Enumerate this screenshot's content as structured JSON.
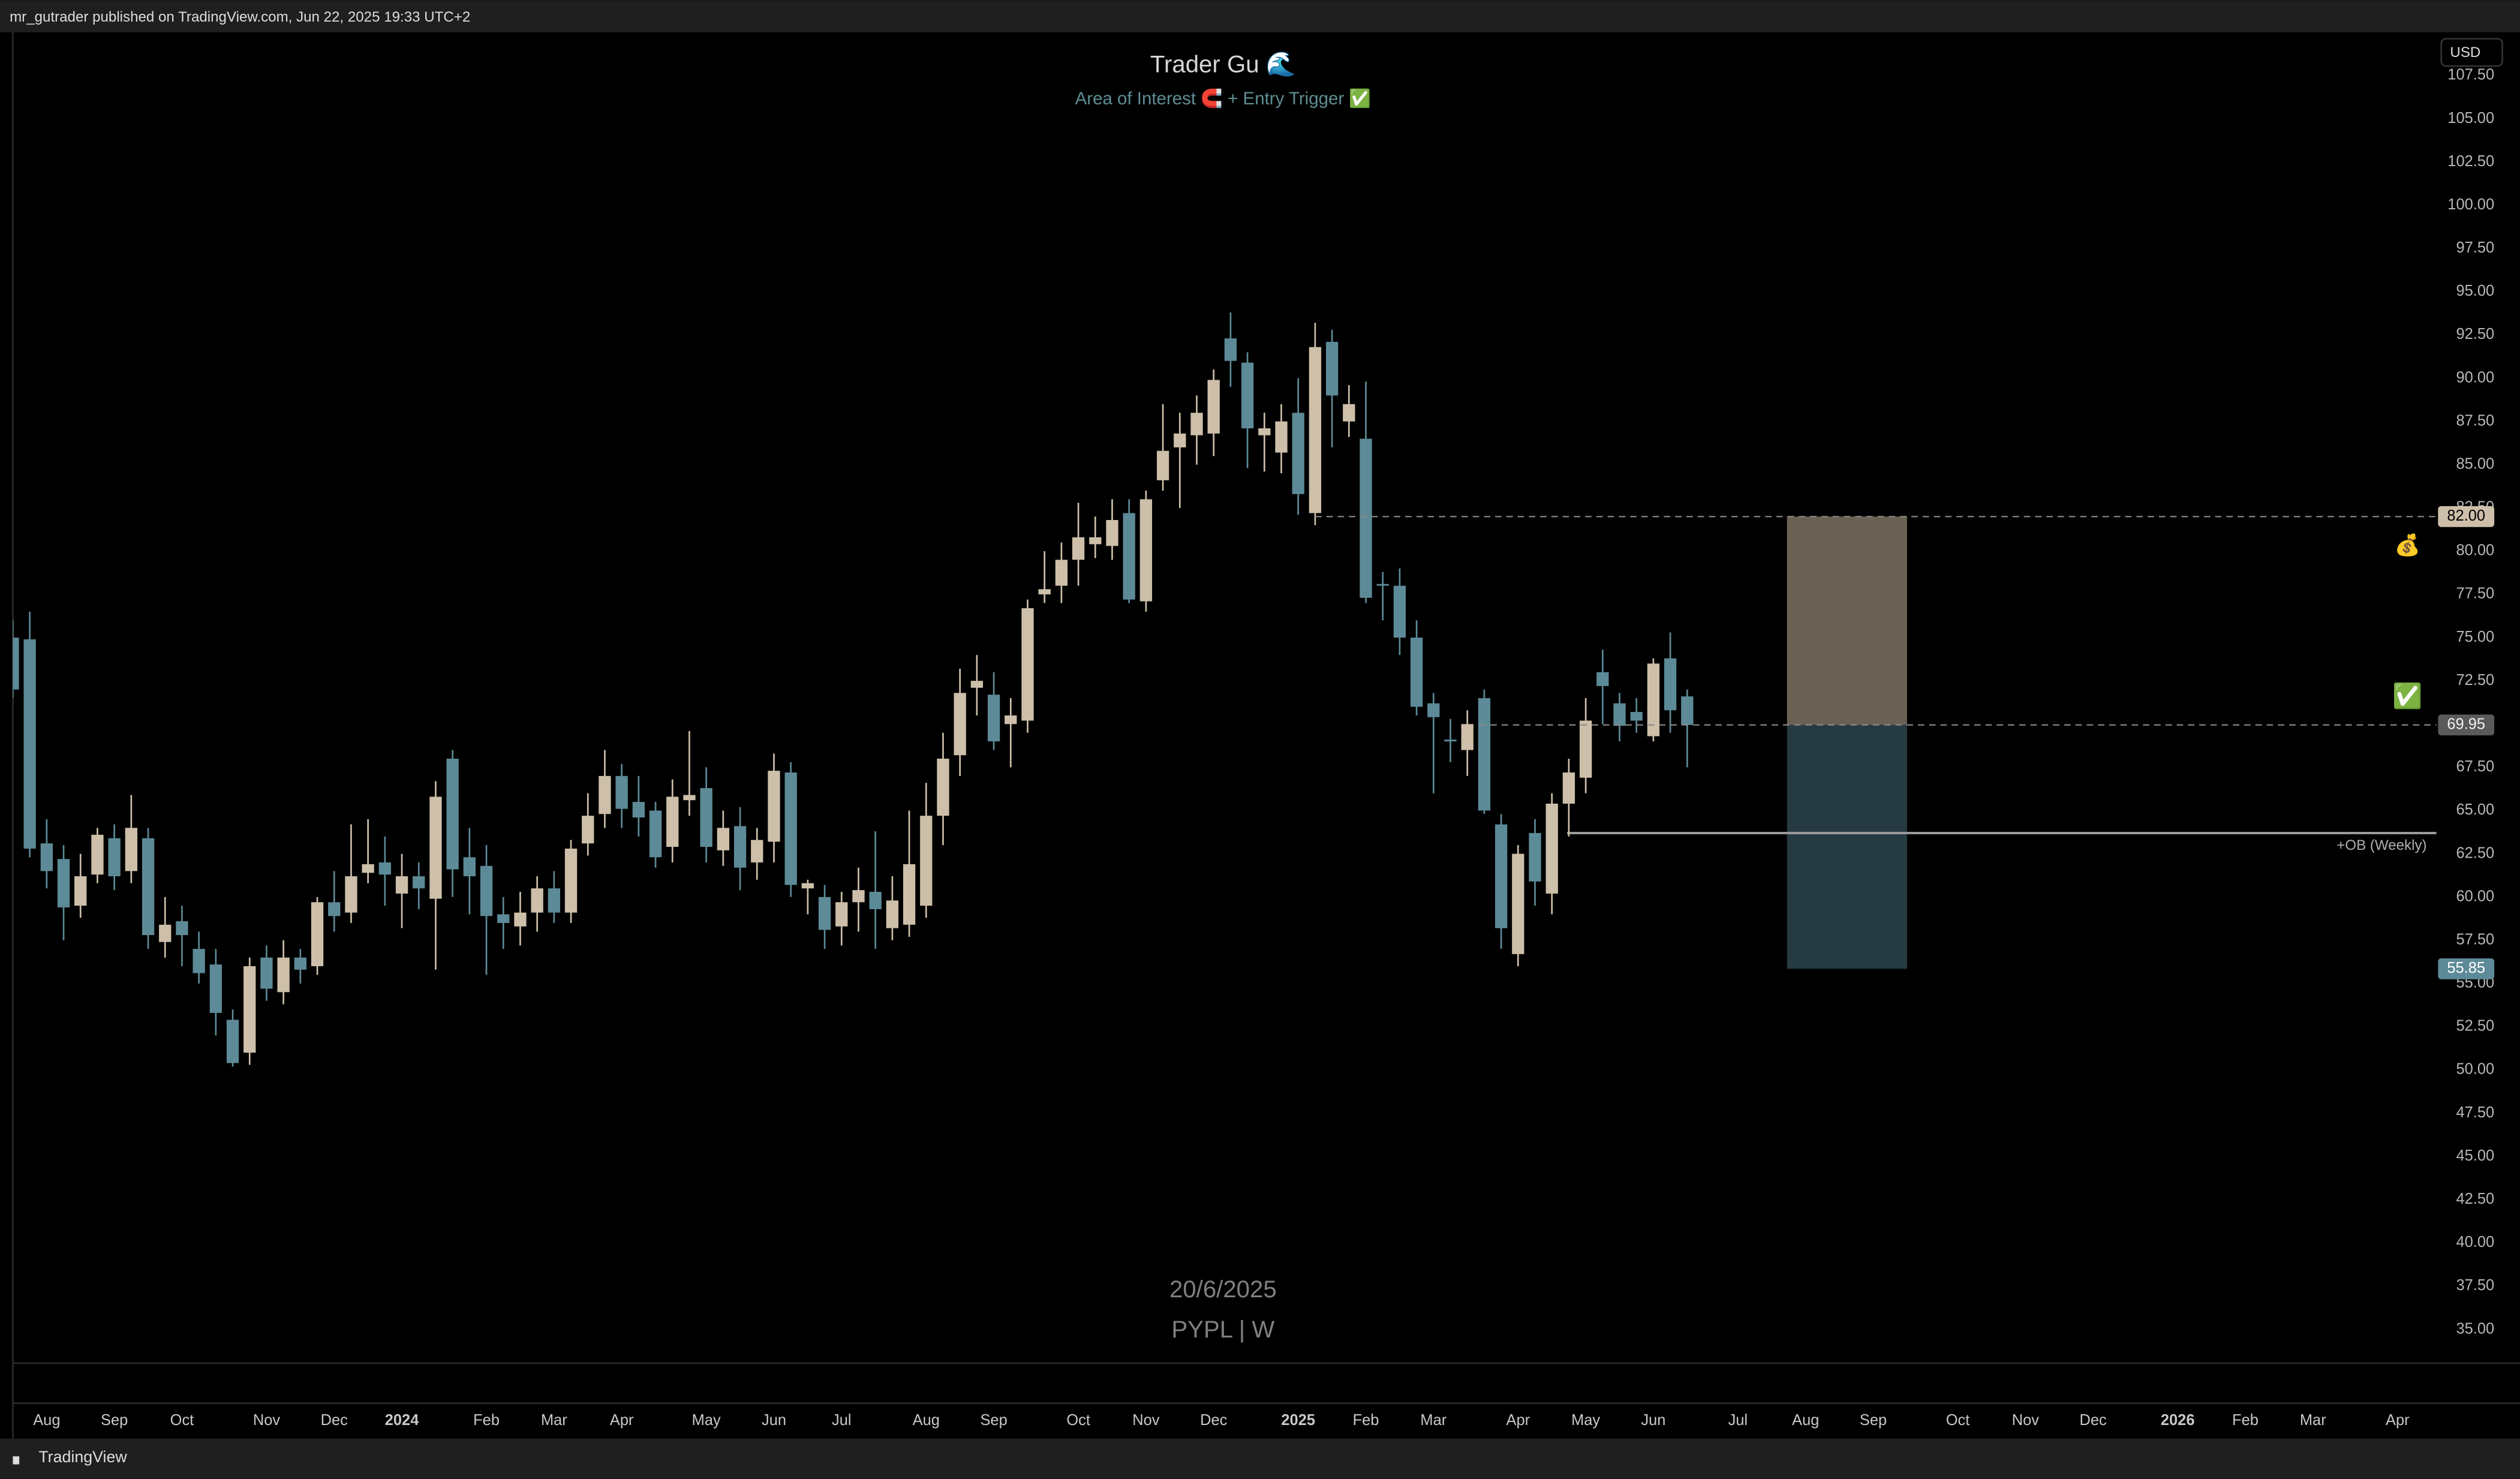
{
  "header": {
    "text": "mr_gutrader published on TradingView.com, Jun 22, 2025 19:33 UTC+2",
    "currency": "USD"
  },
  "footer": {
    "brand": "TradingView"
  },
  "chart_data": {
    "type": "candlestick",
    "title": "Trader Gu 🌊",
    "subtitle": "Area of Interest 🧲 + Entry Trigger ✅",
    "watermark": [
      "20/6/2025",
      "PYPL | W"
    ],
    "up_color": "#cdbfa9",
    "down_color": "#5d8a97",
    "open": [
      75,
      74.9,
      63.1,
      62.2,
      59.5,
      61.3,
      63.4,
      61.5,
      63.4,
      57.4,
      58.6,
      57,
      56.1,
      52.9,
      51,
      56.5,
      54.5,
      56.5,
      56,
      59.7,
      59.1,
      61.4,
      62,
      60.2,
      61.2,
      59.9,
      68,
      62.3,
      61.8,
      59,
      58.3,
      59.1,
      60.5,
      59.1,
      63.1,
      64.8,
      67,
      65.5,
      65,
      62.9,
      65.6,
      66.3,
      62.7,
      64.1,
      62,
      63.2,
      67.2,
      60.5,
      60,
      58.3,
      59.7,
      60.3,
      58.2,
      58.4,
      59.5,
      64.7,
      68.2,
      72.1,
      71.7,
      70,
      70.2,
      77.5,
      78,
      79.5,
      80.4,
      80.3,
      82.2,
      77.1,
      84.1,
      86,
      86.7,
      86.8,
      92.3,
      90.9,
      86.7,
      85.7,
      88,
      82.2,
      92.1,
      87.5,
      86.5,
      78.1,
      78,
      75,
      71.2,
      69.1,
      68.5,
      71.5,
      64.2,
      56.7,
      63.7,
      60.2,
      65.4,
      66.9,
      73,
      71.2,
      70.7,
      69.3,
      73.8,
      71.6
    ],
    "high": [
      76,
      76.5,
      64.5,
      63,
      62.5,
      64,
      64.2,
      65.9,
      64,
      60,
      59.5,
      58,
      57,
      53.5,
      56.5,
      57.2,
      57.5,
      57,
      60,
      61.5,
      64.2,
      64.5,
      63.5,
      62.5,
      62,
      66.7,
      68.5,
      64,
      63,
      60,
      60.3,
      61.2,
      61.5,
      63.3,
      66,
      68.5,
      67.7,
      67,
      65.5,
      66.8,
      69.6,
      67.5,
      65,
      65.2,
      64,
      68.3,
      67.8,
      61,
      60.7,
      60.3,
      61.7,
      63.8,
      61.2,
      65,
      66.6,
      69.5,
      73.2,
      74,
      73,
      71.5,
      77.2,
      80,
      80.5,
      82.8,
      82,
      83,
      83,
      83.5,
      88.5,
      88,
      89,
      90.5,
      93.8,
      91.5,
      88,
      88.5,
      90,
      93.2,
      92.8,
      89.6,
      89.8,
      78.8,
      79,
      76,
      71.8,
      70.3,
      70.8,
      72,
      64.8,
      63,
      64.5,
      66,
      68,
      71.5,
      74.3,
      71.8,
      71.5,
      73.8,
      75.3,
      72
    ],
    "low": [
      71.5,
      62.3,
      60.5,
      57.5,
      58.8,
      60.8,
      60.4,
      60.8,
      57,
      56.5,
      56,
      55,
      52,
      50.2,
      50.3,
      54,
      53.8,
      55,
      55.5,
      58,
      58.5,
      60.8,
      59.5,
      58.2,
      59.3,
      55.8,
      60,
      59,
      55.5,
      57,
      57.2,
      58,
      58.5,
      58.5,
      62.4,
      64,
      64,
      63.5,
      61.7,
      62,
      64.7,
      62,
      61.8,
      60.4,
      61,
      62,
      60,
      59,
      57,
      57.2,
      58,
      57,
      57.5,
      57.7,
      58.8,
      63,
      67,
      70.5,
      68.5,
      67.5,
      69.5,
      77,
      77,
      78,
      79.6,
      79.5,
      77,
      76.5,
      83.5,
      82.5,
      85,
      85.5,
      89.5,
      84.8,
      84.6,
      84.5,
      82.1,
      81.5,
      86,
      86.6,
      77,
      76,
      74,
      70.5,
      66,
      67.8,
      67,
      64.8,
      57,
      56,
      59.5,
      59,
      63.5,
      66,
      70,
      69,
      69.5,
      69,
      69.5,
      67.5
    ],
    "close": [
      72,
      62.8,
      61.5,
      59.4,
      61.2,
      63.6,
      61.2,
      64,
      57.8,
      58.4,
      57.8,
      55.6,
      53.3,
      50.4,
      56,
      54.7,
      56.5,
      55.8,
      59.7,
      58.9,
      61.2,
      61.9,
      61.3,
      61.2,
      60.5,
      65.8,
      61.6,
      61.2,
      58.9,
      58.5,
      59.1,
      60.5,
      59.1,
      62.8,
      64.7,
      67,
      65.1,
      64.6,
      62.3,
      65.8,
      65.9,
      62.9,
      64,
      61.7,
      63.3,
      67.3,
      60.7,
      60.8,
      58.1,
      59.7,
      60.4,
      59.3,
      59.8,
      61.9,
      64.7,
      68,
      71.8,
      72.5,
      69,
      70.5,
      76.7,
      77.8,
      79.5,
      80.8,
      80.8,
      81.8,
      77.2,
      83,
      85.8,
      86.8,
      88,
      89.9,
      91,
      87.1,
      87.1,
      87.5,
      83.3,
      91.8,
      89,
      88.5,
      77.3,
      78,
      75,
      71,
      70.4,
      69,
      70,
      65,
      58.2,
      62.5,
      60.9,
      65.4,
      67.2,
      70.2,
      72.2,
      69.9,
      70.2,
      73.5,
      70.8,
      69.95
    ],
    "xlim": [
      0,
      143.3
    ],
    "ylim": [
      33.05,
      110.0
    ],
    "xticks": [
      {
        "value": 2,
        "label": "Aug"
      },
      {
        "value": 6,
        "label": "Sep"
      },
      {
        "value": 10,
        "label": "Oct"
      },
      {
        "value": 15,
        "label": "Nov"
      },
      {
        "value": 19,
        "label": "Dec"
      },
      {
        "value": 23,
        "label": "2024"
      },
      {
        "value": 28,
        "label": "Feb"
      },
      {
        "value": 32,
        "label": "Mar"
      },
      {
        "value": 36,
        "label": "Apr"
      },
      {
        "value": 41,
        "label": "May"
      },
      {
        "value": 45,
        "label": "Jun"
      },
      {
        "value": 49,
        "label": "Jul"
      },
      {
        "value": 54,
        "label": "Aug"
      },
      {
        "value": 58,
        "label": "Sep"
      },
      {
        "value": 63,
        "label": "Oct"
      },
      {
        "value": 67,
        "label": "Nov"
      },
      {
        "value": 71,
        "label": "Dec"
      },
      {
        "value": 76,
        "label": "2025"
      },
      {
        "value": 80,
        "label": "Feb"
      },
      {
        "value": 84,
        "label": "Mar"
      },
      {
        "value": 89,
        "label": "Apr"
      },
      {
        "value": 93,
        "label": "May"
      },
      {
        "value": 97,
        "label": "Jun"
      },
      {
        "value": 102,
        "label": "Jul"
      },
      {
        "value": 106,
        "label": "Aug"
      },
      {
        "value": 110,
        "label": "Sep"
      },
      {
        "value": 115,
        "label": "Oct"
      },
      {
        "value": 119,
        "label": "Nov"
      },
      {
        "value": 123,
        "label": "Dec"
      },
      {
        "value": 128,
        "label": "2026"
      },
      {
        "value": 132,
        "label": "Feb"
      },
      {
        "value": 136,
        "label": "Mar"
      },
      {
        "value": 141,
        "label": "Apr"
      }
    ],
    "yticks": [
      {
        "value": 35,
        "label": "35.00"
      },
      {
        "value": 37.5,
        "label": "37.50"
      },
      {
        "value": 40,
        "label": "40.00"
      },
      {
        "value": 42.5,
        "label": "42.50"
      },
      {
        "value": 45,
        "label": "45.00"
      },
      {
        "value": 47.5,
        "label": "47.50"
      },
      {
        "value": 50,
        "label": "50.00"
      },
      {
        "value": 52.5,
        "label": "52.50"
      },
      {
        "value": 55,
        "label": "55.00"
      },
      {
        "value": 57.5,
        "label": "57.50"
      },
      {
        "value": 60,
        "label": "60.00"
      },
      {
        "value": 62.5,
        "label": "62.50"
      },
      {
        "value": 65,
        "label": "65.00"
      },
      {
        "value": 67.5,
        "label": "67.50"
      },
      {
        "value": 70,
        "label": "70.00"
      },
      {
        "value": 72.5,
        "label": "72.50"
      },
      {
        "value": 75,
        "label": "75.00"
      },
      {
        "value": 77.5,
        "label": "77.50"
      },
      {
        "value": 80,
        "label": "80.00"
      },
      {
        "value": 82.5,
        "label": "82.50"
      },
      {
        "value": 85,
        "label": "85.00"
      },
      {
        "value": 87.5,
        "label": "87.50"
      },
      {
        "value": 90,
        "label": "90.00"
      },
      {
        "value": 92.5,
        "label": "92.50"
      },
      {
        "value": 95,
        "label": "95.00"
      },
      {
        "value": 97.5,
        "label": "97.50"
      },
      {
        "value": 100,
        "label": "100.00"
      },
      {
        "value": 102.5,
        "label": "102.50"
      },
      {
        "value": 105,
        "label": "105.00"
      },
      {
        "value": 107.5,
        "label": "107.50"
      }
    ],
    "position": {
      "x_start": 104.9,
      "x_end": 112,
      "target": 82,
      "entry": 69.95,
      "stop": 55.85,
      "profit_color": "#6b6054",
      "loss_color": "#263a42"
    },
    "levels": [
      {
        "value": 82,
        "label": "82.00",
        "start": 77,
        "color": "#cdbfa9",
        "text_color": "#000",
        "dashed": true
      },
      {
        "value": 69.95,
        "label": "69.95",
        "start": 86.7,
        "color": "#5a5a5a",
        "text_color": "#eee",
        "dashed": true
      },
      {
        "value": 55.85,
        "label": "55.85",
        "color": "#5d8a97",
        "text_color": "#fff"
      }
    ],
    "annotations": [
      {
        "value": 63.7,
        "start": 91.9,
        "label": "+OB (Weekly)"
      }
    ],
    "icons": [
      "💰",
      "✅"
    ]
  }
}
